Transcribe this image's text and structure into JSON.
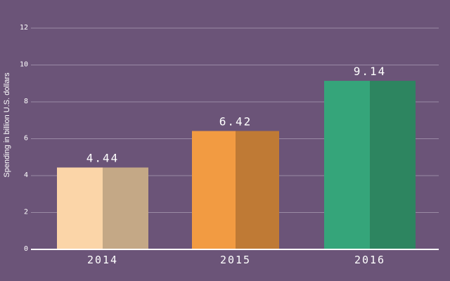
{
  "chart_data": {
    "type": "bar",
    "categories": [
      "2014",
      "2015",
      "2016"
    ],
    "values": [
      4.44,
      6.42,
      9.14
    ],
    "data_labels": [
      "4.44",
      "6.42",
      "9.14"
    ],
    "title": "",
    "xlabel": "",
    "ylabel": "Spending in billion U.S. dollars",
    "ylim": [
      0,
      12
    ],
    "yticks": [
      0,
      2,
      4,
      6,
      8,
      10,
      12
    ],
    "grid": true,
    "legend": "none",
    "colors": {
      "background": "#6b5478",
      "grid": "#9a8aa5",
      "baseline": "#ffffff",
      "bars": [
        {
          "light": "#fbd5a8",
          "dark": "#c4a886"
        },
        {
          "light": "#f29b42",
          "dark": "#bf7a35"
        },
        {
          "light": "#35a57a",
          "dark": "#2d8560"
        }
      ]
    }
  }
}
